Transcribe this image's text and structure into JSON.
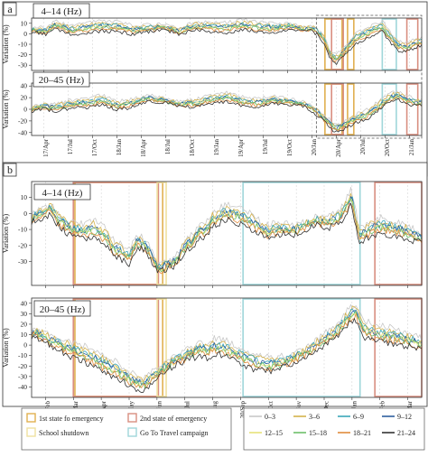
{
  "chart_data": [
    {
      "type": "line",
      "panel_letter": "a",
      "x_label": "Date",
      "x_tick_labels": [
        "17/Apr",
        "17/Jul",
        "17/Oct",
        "18/Jan",
        "18/Apr",
        "18/Jul",
        "18/Oct",
        "19/Jan",
        "19/Apr",
        "19/Jul",
        "19/Oct",
        "20/Jan",
        "20/Apr",
        "20/Jul",
        "20/Oct",
        "21/Jan"
      ],
      "subplots": [
        {
          "band_label": "4–14 (Hz)",
          "ylabel": "Variation (%)",
          "ylim": [
            -35,
            15
          ],
          "yticks": [
            10,
            0,
            -10,
            -20,
            -30
          ],
          "profile": [
            [
              0,
              4
            ],
            [
              0.04,
              2
            ],
            [
              0.06,
              8
            ],
            [
              0.1,
              3
            ],
            [
              0.14,
              5
            ],
            [
              0.18,
              7
            ],
            [
              0.22,
              6
            ],
            [
              0.26,
              3
            ],
            [
              0.3,
              5
            ],
            [
              0.34,
              6
            ],
            [
              0.38,
              2
            ],
            [
              0.42,
              7
            ],
            [
              0.46,
              6
            ],
            [
              0.5,
              5
            ],
            [
              0.54,
              8
            ],
            [
              0.58,
              6
            ],
            [
              0.62,
              5
            ],
            [
              0.66,
              7
            ],
            [
              0.7,
              4
            ],
            [
              0.72,
              5
            ],
            [
              0.735,
              1
            ],
            [
              0.75,
              -6
            ],
            [
              0.765,
              -20
            ],
            [
              0.78,
              -25
            ],
            [
              0.8,
              -18
            ],
            [
              0.83,
              -5
            ],
            [
              0.86,
              0
            ],
            [
              0.88,
              4
            ],
            [
              0.9,
              6
            ],
            [
              0.92,
              -4
            ],
            [
              0.94,
              -12
            ],
            [
              0.96,
              -14
            ],
            [
              0.98,
              -10
            ],
            [
              1,
              -8
            ]
          ]
        },
        {
          "band_label": "20–45 (Hz)",
          "ylabel": "Variation (%)",
          "ylim": [
            -45,
            45
          ],
          "yticks": [
            40,
            20,
            0,
            -20,
            -40
          ],
          "profile": [
            [
              0,
              0
            ],
            [
              0.03,
              5
            ],
            [
              0.06,
              2
            ],
            [
              0.1,
              8
            ],
            [
              0.14,
              10
            ],
            [
              0.18,
              15
            ],
            [
              0.22,
              5
            ],
            [
              0.26,
              10
            ],
            [
              0.3,
              18
            ],
            [
              0.34,
              15
            ],
            [
              0.38,
              8
            ],
            [
              0.42,
              10
            ],
            [
              0.46,
              16
            ],
            [
              0.5,
              20
            ],
            [
              0.54,
              12
            ],
            [
              0.58,
              10
            ],
            [
              0.62,
              15
            ],
            [
              0.66,
              12
            ],
            [
              0.7,
              8
            ],
            [
              0.72,
              0
            ],
            [
              0.74,
              -10
            ],
            [
              0.76,
              -22
            ],
            [
              0.78,
              -35
            ],
            [
              0.8,
              -28
            ],
            [
              0.82,
              -20
            ],
            [
              0.84,
              -15
            ],
            [
              0.86,
              -10
            ],
            [
              0.88,
              0
            ],
            [
              0.9,
              10
            ],
            [
              0.92,
              20
            ],
            [
              0.94,
              22
            ],
            [
              0.96,
              15
            ],
            [
              0.98,
              12
            ],
            [
              1,
              10
            ]
          ]
        }
      ],
      "highlights": [
        {
          "x0": 0.752,
          "x1": 0.796,
          "color": "#e0b050"
        },
        {
          "x0": 0.769,
          "x1": 0.799,
          "color": "#d98f80"
        },
        {
          "x0": 0.81,
          "x1": 0.826,
          "color": "#e0b050"
        },
        {
          "x0": 0.899,
          "x1": 0.935,
          "color": "#9fd6da"
        },
        {
          "x0": 0.962,
          "x1": 0.99,
          "color": "#d98f80"
        }
      ]
    },
    {
      "type": "line",
      "panel_letter": "b",
      "x_tick_labels": [
        "20/Feb",
        "20/Mar",
        "20/Apr",
        "20/May",
        "20/Jun",
        "20/Jul",
        "20/Aug",
        "20/Sep",
        "20/Oct",
        "20/Nov",
        "20/Dec",
        "21/Jan",
        "21/Feb",
        "21/Mar"
      ],
      "subplots": [
        {
          "band_label": "4–14 (Hz)",
          "ylabel": "Variation (%)",
          "ylim": [
            -45,
            20
          ],
          "yticks": [
            10,
            0,
            -10,
            -20,
            -30
          ],
          "profile": [
            [
              0,
              -3
            ],
            [
              0.03,
              0
            ],
            [
              0.05,
              2
            ],
            [
              0.07,
              -5
            ],
            [
              0.1,
              -10
            ],
            [
              0.13,
              -12
            ],
            [
              0.16,
              -10
            ],
            [
              0.19,
              -15
            ],
            [
              0.21,
              -22
            ],
            [
              0.23,
              -25
            ],
            [
              0.25,
              -28
            ],
            [
              0.27,
              -18
            ],
            [
              0.29,
              -20
            ],
            [
              0.31,
              -28
            ],
            [
              0.33,
              -35
            ],
            [
              0.35,
              -32
            ],
            [
              0.37,
              -30
            ],
            [
              0.39,
              -22
            ],
            [
              0.41,
              -18
            ],
            [
              0.43,
              -12
            ],
            [
              0.45,
              -10
            ],
            [
              0.46,
              -5
            ],
            [
              0.5,
              0
            ],
            [
              0.53,
              -2
            ],
            [
              0.56,
              -5
            ],
            [
              0.6,
              -12
            ],
            [
              0.64,
              -10
            ],
            [
              0.67,
              -11
            ],
            [
              0.7,
              -8
            ],
            [
              0.73,
              -5
            ],
            [
              0.76,
              -6
            ],
            [
              0.79,
              -3
            ],
            [
              0.81,
              5
            ],
            [
              0.82,
              10
            ],
            [
              0.84,
              -15
            ],
            [
              0.87,
              -10
            ],
            [
              0.9,
              -8
            ],
            [
              0.93,
              -10
            ],
            [
              0.96,
              -12
            ],
            [
              1,
              -16
            ]
          ]
        },
        {
          "band_label": "20–45 (Hz)",
          "ylabel": "Variation (%)",
          "ylim": [
            -50,
            45
          ],
          "yticks": [
            40,
            30,
            20,
            10,
            0,
            -10,
            -20,
            -30,
            -40
          ],
          "profile": [
            [
              0,
              12
            ],
            [
              0.03,
              8
            ],
            [
              0.06,
              2
            ],
            [
              0.1,
              -5
            ],
            [
              0.14,
              -10
            ],
            [
              0.18,
              -18
            ],
            [
              0.22,
              -25
            ],
            [
              0.26,
              -35
            ],
            [
              0.29,
              -38
            ],
            [
              0.31,
              -30
            ],
            [
              0.33,
              -25
            ],
            [
              0.35,
              -20
            ],
            [
              0.37,
              -15
            ],
            [
              0.39,
              -12
            ],
            [
              0.41,
              -8
            ],
            [
              0.43,
              -5
            ],
            [
              0.45,
              -6
            ],
            [
              0.47,
              -2
            ],
            [
              0.5,
              -5
            ],
            [
              0.54,
              -12
            ],
            [
              0.58,
              -18
            ],
            [
              0.62,
              -20
            ],
            [
              0.66,
              -15
            ],
            [
              0.7,
              -8
            ],
            [
              0.74,
              2
            ],
            [
              0.78,
              12
            ],
            [
              0.81,
              25
            ],
            [
              0.83,
              32
            ],
            [
              0.85,
              15
            ],
            [
              0.88,
              10
            ],
            [
              0.92,
              8
            ],
            [
              0.96,
              5
            ],
            [
              1,
              0
            ]
          ]
        }
      ],
      "highlights": [
        {
          "x0": 0.111,
          "x1": 0.336,
          "color": "#e0b050"
        },
        {
          "x0": 0.107,
          "x1": 0.325,
          "color": "#d98f80"
        },
        {
          "x0": 0.322,
          "x1": 0.345,
          "color": "#f0e0a0"
        },
        {
          "x0": 0.542,
          "x1": 0.842,
          "color": "#9fd6da"
        },
        {
          "x0": 0.88,
          "x1": 1.0,
          "color": "#d98f80"
        }
      ]
    }
  ],
  "event_legend": [
    {
      "label": "1st state fo emergency",
      "color": "#e0b050"
    },
    {
      "label": "2nd state of emergency",
      "color": "#d98f80"
    },
    {
      "label": "School shutdown",
      "color": "#f0e0a0"
    },
    {
      "label": "Go To Travel campaign",
      "color": "#9fd6da"
    }
  ],
  "series": [
    {
      "name": "0–3",
      "color": "#c8c8c8",
      "offset": 4
    },
    {
      "name": "3–6",
      "color": "#d4b24c",
      "offset": 2.5
    },
    {
      "name": "6–9",
      "color": "#3aa6b9",
      "offset": 1.5
    },
    {
      "name": "9–12",
      "color": "#2e5f9e",
      "offset": 0.8
    },
    {
      "name": "12–15",
      "color": "#e6e27a",
      "offset": 0.2
    },
    {
      "name": "15–18",
      "color": "#6cbf6a",
      "offset": -0.5
    },
    {
      "name": "18–21",
      "color": "#e08a3c",
      "offset": -1.5
    },
    {
      "name": "21–24",
      "color": "#333333",
      "offset": -3
    }
  ]
}
